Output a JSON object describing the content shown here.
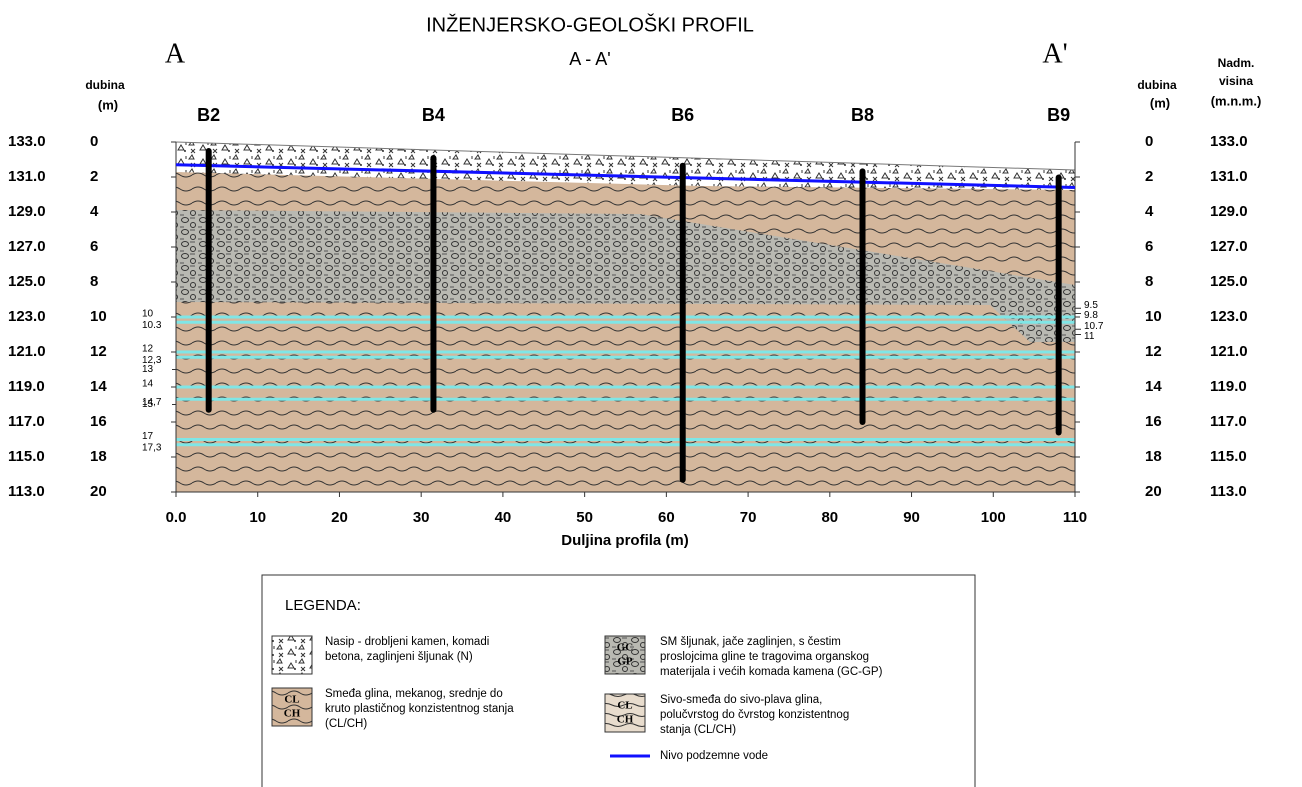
{
  "title": "INŽENJERSKO-GEOLOŠKI PROFIL",
  "subtitle": "A - A'",
  "end_left": "A",
  "end_right": "A'",
  "depth_title": "dubina",
  "depth_unit": "(m)",
  "elev_title": [
    "Nadm.",
    "visina"
  ],
  "elev_unit": "(m.n.m.)",
  "depth_lim": [
    0,
    20
  ],
  "depth_ticks": [
    0,
    2,
    4,
    6,
    8,
    10,
    12,
    14,
    16,
    18,
    20
  ],
  "elev_lim": [
    133,
    113
  ],
  "elev_ticks": [
    {
      "value": 133,
      "label": "133.0"
    },
    {
      "value": 131,
      "label": "131.0"
    },
    {
      "value": 129,
      "label": "129.0"
    },
    {
      "value": 127,
      "label": "127.0"
    },
    {
      "value": 125,
      "label": "125.0"
    },
    {
      "value": 123,
      "label": "123.0"
    },
    {
      "value": 121,
      "label": "121.0"
    },
    {
      "value": 119,
      "label": "119.0"
    },
    {
      "value": 117,
      "label": "117.0"
    },
    {
      "value": 115,
      "label": "115.0"
    },
    {
      "value": 113,
      "label": "113.0"
    }
  ],
  "xlim": [
    0,
    110
  ],
  "x_ticks": [
    {
      "value": 0,
      "label": "0.0"
    },
    10,
    20,
    30,
    40,
    50,
    60,
    70,
    80,
    90,
    100,
    110
  ],
  "x_label": "Duljina profila  (m)",
  "boreholes": [
    {
      "name": "B2",
      "x": 4,
      "bottom": 15.3
    },
    {
      "name": "B4",
      "x": 31.5,
      "bottom": 15.3
    },
    {
      "name": "B6",
      "x": 62,
      "bottom": 19.3
    },
    {
      "name": "B8",
      "x": 84,
      "bottom": 16
    },
    {
      "name": "B9",
      "x": 108,
      "bottom": 16.6
    }
  ],
  "groundwater": {
    "x": [
      0,
      110
    ],
    "depth": [
      1.3,
      2.6
    ]
  },
  "seams": [
    {
      "top": 10,
      "bottom": {
        "value": 10.3,
        "label": "10.3"
      }
    },
    {
      "top": 12,
      "bottom": {
        "value": 12.3,
        "label": "12,3"
      }
    },
    {
      "top": 14,
      "bottom": {
        "value": 14.7,
        "label": "14,7"
      }
    },
    {
      "top": 17,
      "bottom": {
        "value": 17.3,
        "label": "17,3"
      }
    }
  ],
  "left_marks": [
    13,
    15
  ],
  "right_marks": [
    9.5,
    9.8,
    10.7,
    11
  ],
  "legend": {
    "title": "LEGENDA:",
    "items": [
      {
        "symbol": [],
        "text": [
          "Nasip - drobljeni kamen, komadi",
          "betona, zaglinjeni šljunak (N)"
        ]
      },
      {
        "symbol": [
          "CL",
          "CH"
        ],
        "text": [
          "Smeđa glina, mekanog, srednje do",
          "kruto plastičnog konzistentnog stanja",
          "(CL/CH)"
        ]
      },
      {
        "symbol": [
          "GC",
          "GP"
        ],
        "text": [
          "SM šljunak, jače zaglinjen, s čestim",
          "proslojcima gline te tragovima organskog",
          "materijala i većih komada kamena (GC-GP)"
        ]
      },
      {
        "symbol": [
          "CL",
          "CH"
        ],
        "text": [
          "Sivo-smeđa do sivo-plava glina,",
          "polučvrstog do čvrstog konzistentnog",
          "stanja (CL/CH)"
        ]
      },
      {
        "symbol": [],
        "text": [
          "Nivo podzemne vode"
        ]
      }
    ]
  }
}
